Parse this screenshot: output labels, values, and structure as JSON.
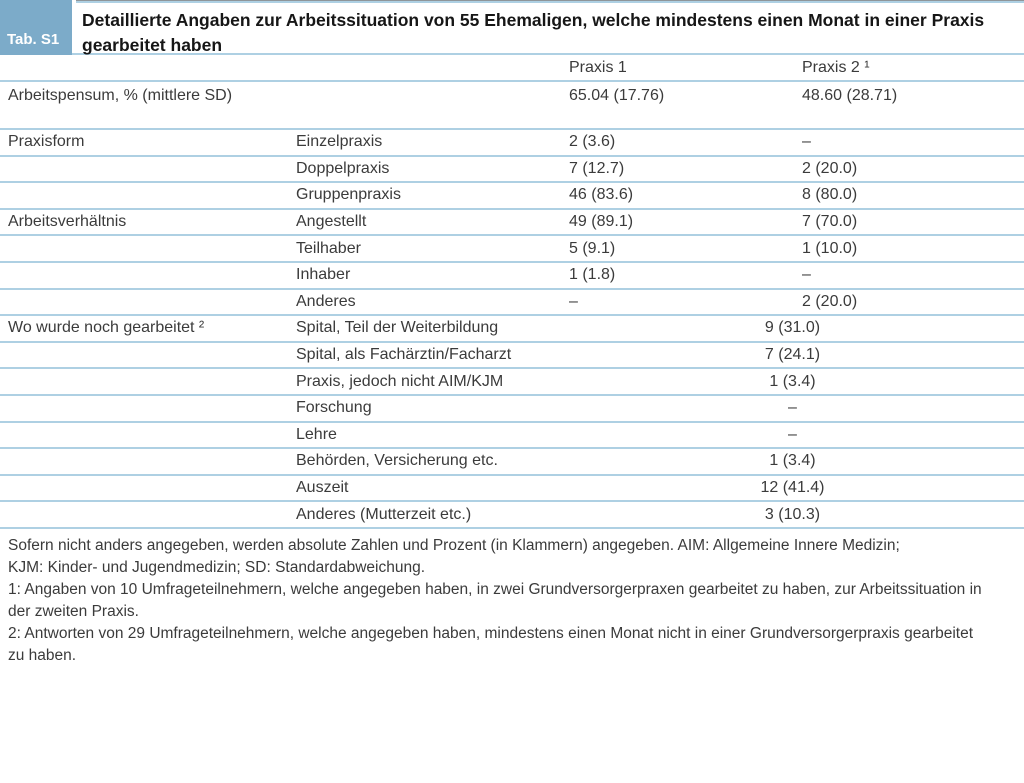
{
  "table": {
    "tag": "Tab. S1",
    "title_line1": "Detaillierte Angaben zur Arbeitssituation von 55 Ehemaligen, welche mindestens einen Monat in einer Praxis",
    "title_line2": "gearbeitet haben",
    "columns": [
      "Praxis 1",
      "Praxis 2 ¹"
    ],
    "rows": [
      {
        "label": "Arbeitspensum, % (mittlere SD)",
        "sub": "",
        "p1": "65.04 (17.76)",
        "p2": "48.60 (28.71)",
        "tall": true
      },
      {
        "label": "Praxisform",
        "sub": "Einzelpraxis",
        "p1": "2 (3.6)",
        "p2": "–"
      },
      {
        "label": "",
        "sub": "Doppelpraxis",
        "p1": "7 (12.7)",
        "p2": "2 (20.0)"
      },
      {
        "label": "",
        "sub": "Gruppenpraxis",
        "p1": "46 (83.6)",
        "p2": "8 (80.0)"
      },
      {
        "label": "Arbeitsverhältnis",
        "sub": "Angestellt",
        "p1": "49 (89.1)",
        "p2": "7 (70.0)"
      },
      {
        "label": "",
        "sub": "Teilhaber",
        "p1": "5 (9.1)",
        "p2": "1 (10.0)"
      },
      {
        "label": "",
        "sub": "Inhaber",
        "p1": "1 (1.8)",
        "p2": "–"
      },
      {
        "label": "",
        "sub": "Anderes",
        "p1": "–",
        "p2": "2 (20.0)"
      },
      {
        "label": "Wo wurde noch gearbeitet ²",
        "sub": "Spital, Teil der Weiterbildung",
        "span": "9 (31.0)"
      },
      {
        "label": "",
        "sub": "Spital, als Fachärztin/Facharzt",
        "span": "7 (24.1)"
      },
      {
        "label": "",
        "sub": "Praxis, jedoch nicht AIM/KJM",
        "span": "1 (3.4)"
      },
      {
        "label": "",
        "sub": "Forschung",
        "span": "–"
      },
      {
        "label": "",
        "sub": "Lehre",
        "span": "–"
      },
      {
        "label": "",
        "sub": "Behörden, Versicherung etc.",
        "span": "1 (3.4)"
      },
      {
        "label": "",
        "sub": "Auszeit",
        "span": "12 (41.4)"
      },
      {
        "label": "",
        "sub": "Anderes (Mutterzeit etc.)",
        "span": "3 (10.3)"
      }
    ],
    "footnote_lines": [
      "Sofern nicht anders angegeben, werden absolute Zahlen und Prozent (in Klammern) angegeben. AIM: Allgemeine Innere Medizin;",
      "KJM: Kinder- und Jugendmedizin; SD: Standardabweichung.",
      "1: Angaben von 10 Umfrageteilnehmern, welche angegeben haben, in zwei Grundversorgerpraxen gearbeitet zu haben, zur Arbeitssituation in",
      "der zweiten Praxis.",
      "2: Antworten von 29 Umfrageteilnehmern, welche angegeben haben, mindestens einen Monat nicht in einer Grundversorgerpraxis gearbeitet",
      "zu haben."
    ]
  },
  "colors": {
    "tag_background": "#7cabc9",
    "tag_text": "#ffffff",
    "row_separator": "#aed0e3",
    "title_text": "#161616",
    "body_text": "#3b3b3b"
  }
}
